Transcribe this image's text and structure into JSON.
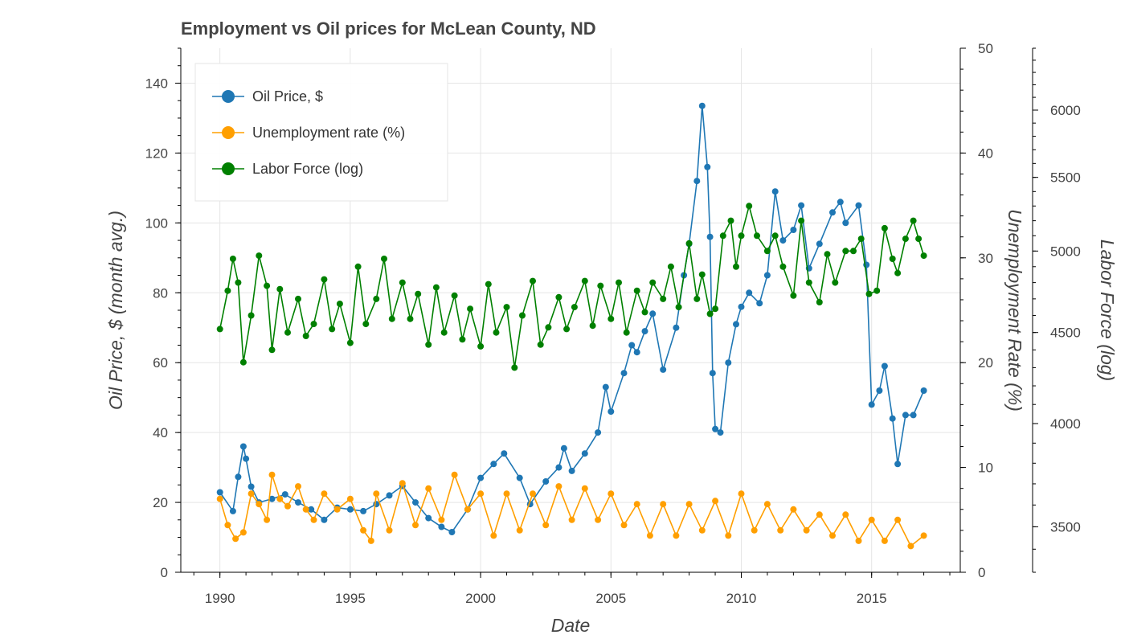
{
  "chart_data": {
    "type": "line",
    "title": "Employment vs Oil prices for McLean County, ND",
    "xlabel": "Date",
    "ylabel_left": "Oil Price, $ (month avg.)",
    "ylabel_right1": "Unemployment Rate (%)",
    "ylabel_right2": "Labor Force (log)",
    "xlim": [
      1988.5,
      2018.4
    ],
    "x_ticks": [
      "1990",
      "1995",
      "2000",
      "2005",
      "2010",
      "2015"
    ],
    "x_tick_values": [
      1990,
      1995,
      2000,
      2005,
      2010,
      2015
    ],
    "y_left": {
      "lim": [
        0,
        150
      ],
      "ticks": [
        "0",
        "20",
        "40",
        "60",
        "80",
        "100",
        "120",
        "140"
      ],
      "tick_values": [
        0,
        20,
        40,
        60,
        80,
        100,
        120,
        140
      ]
    },
    "y_right1": {
      "lim": [
        0,
        50
      ],
      "ticks": [
        "0",
        "10",
        "20",
        "30",
        "40",
        "50"
      ],
      "tick_values": [
        0,
        10,
        20,
        30,
        40,
        50
      ]
    },
    "y_right2": {
      "scale": "log",
      "lim": [
        3300,
        6500
      ],
      "ticks": [
        "3500",
        "4000",
        "4500",
        "5000",
        "5500",
        "6000"
      ],
      "tick_values": [
        3500,
        4000,
        4500,
        5000,
        5500,
        6000
      ]
    },
    "grid": true,
    "legend_position": "top-left",
    "legend": [
      "Oil Price, $",
      "Unemployment rate (%)",
      "Labor Force (log)"
    ],
    "series": [
      {
        "name": "Oil Price, $",
        "axis": "left",
        "color": "#1f77b4",
        "points": [
          [
            1990.0,
            22.9
          ],
          [
            1990.5,
            17.5
          ],
          [
            1990.7,
            27.3
          ],
          [
            1990.9,
            36.0
          ],
          [
            1991.0,
            32.5
          ],
          [
            1991.2,
            24.5
          ],
          [
            1991.5,
            20.0
          ],
          [
            1992.0,
            21.0
          ],
          [
            1992.5,
            22.3
          ],
          [
            1993.0,
            20.0
          ],
          [
            1993.5,
            18.0
          ],
          [
            1994.0,
            15.0
          ],
          [
            1994.5,
            18.5
          ],
          [
            1995.0,
            18.0
          ],
          [
            1995.5,
            17.5
          ],
          [
            1996.0,
            19.5
          ],
          [
            1996.5,
            22.0
          ],
          [
            1997.0,
            24.7
          ],
          [
            1997.5,
            20.0
          ],
          [
            1998.0,
            15.5
          ],
          [
            1998.5,
            13.0
          ],
          [
            1998.9,
            11.5
          ],
          [
            1999.5,
            18.0
          ],
          [
            2000.0,
            27.0
          ],
          [
            2000.5,
            31.0
          ],
          [
            2000.9,
            34.0
          ],
          [
            2001.5,
            27.0
          ],
          [
            2001.9,
            19.5
          ],
          [
            2002.5,
            26.0
          ],
          [
            2003.0,
            30.0
          ],
          [
            2003.2,
            35.5
          ],
          [
            2003.5,
            29.0
          ],
          [
            2004.0,
            34.0
          ],
          [
            2004.5,
            40.0
          ],
          [
            2004.8,
            53.0
          ],
          [
            2005.0,
            46.0
          ],
          [
            2005.5,
            57.0
          ],
          [
            2005.8,
            65.0
          ],
          [
            2006.0,
            63.0
          ],
          [
            2006.3,
            69.0
          ],
          [
            2006.6,
            74.0
          ],
          [
            2007.0,
            58.0
          ],
          [
            2007.5,
            70.0
          ],
          [
            2007.8,
            85.0
          ],
          [
            2008.0,
            94.0
          ],
          [
            2008.3,
            112.0
          ],
          [
            2008.5,
            133.5
          ],
          [
            2008.7,
            116.0
          ],
          [
            2008.8,
            96.0
          ],
          [
            2008.9,
            57.0
          ],
          [
            2009.0,
            41.0
          ],
          [
            2009.2,
            40.0
          ],
          [
            2009.5,
            60.0
          ],
          [
            2009.8,
            71.0
          ],
          [
            2010.0,
            76.0
          ],
          [
            2010.3,
            80.0
          ],
          [
            2010.7,
            77.0
          ],
          [
            2011.0,
            85.0
          ],
          [
            2011.3,
            109.0
          ],
          [
            2011.6,
            95.0
          ],
          [
            2012.0,
            98.0
          ],
          [
            2012.3,
            105.0
          ],
          [
            2012.6,
            87.0
          ],
          [
            2013.0,
            94.0
          ],
          [
            2013.5,
            103.0
          ],
          [
            2013.8,
            106.0
          ],
          [
            2014.0,
            100.0
          ],
          [
            2014.5,
            105.0
          ],
          [
            2014.8,
            88.0
          ],
          [
            2015.0,
            48.0
          ],
          [
            2015.3,
            52.0
          ],
          [
            2015.5,
            59.0
          ],
          [
            2015.8,
            44.0
          ],
          [
            2016.0,
            31.0
          ],
          [
            2016.3,
            45.0
          ],
          [
            2016.6,
            45.0
          ],
          [
            2017.0,
            52.0
          ]
        ]
      },
      {
        "name": "Unemployment rate (%)",
        "axis": "right1",
        "color": "#ff9f00",
        "points": [
          [
            1990.0,
            7.0
          ],
          [
            1990.3,
            4.5
          ],
          [
            1990.6,
            3.2
          ],
          [
            1990.9,
            3.8
          ],
          [
            1991.2,
            7.5
          ],
          [
            1991.5,
            6.5
          ],
          [
            1991.8,
            5.0
          ],
          [
            1992.0,
            9.3
          ],
          [
            1992.3,
            7.0
          ],
          [
            1992.6,
            6.3
          ],
          [
            1993.0,
            8.2
          ],
          [
            1993.3,
            6.0
          ],
          [
            1993.6,
            5.0
          ],
          [
            1994.0,
            7.5
          ],
          [
            1994.5,
            6.0
          ],
          [
            1995.0,
            7.0
          ],
          [
            1995.5,
            4.0
          ],
          [
            1995.8,
            3.0
          ],
          [
            1996.0,
            7.5
          ],
          [
            1996.5,
            4.0
          ],
          [
            1997.0,
            8.5
          ],
          [
            1997.5,
            4.5
          ],
          [
            1998.0,
            8.0
          ],
          [
            1998.5,
            5.0
          ],
          [
            1999.0,
            9.3
          ],
          [
            1999.5,
            6.0
          ],
          [
            2000.0,
            7.5
          ],
          [
            2000.5,
            3.5
          ],
          [
            2001.0,
            7.5
          ],
          [
            2001.5,
            4.0
          ],
          [
            2002.0,
            7.5
          ],
          [
            2002.5,
            4.5
          ],
          [
            2003.0,
            8.2
          ],
          [
            2003.5,
            5.0
          ],
          [
            2004.0,
            8.0
          ],
          [
            2004.5,
            5.0
          ],
          [
            2005.0,
            7.5
          ],
          [
            2005.5,
            4.5
          ],
          [
            2006.0,
            6.5
          ],
          [
            2006.5,
            3.5
          ],
          [
            2007.0,
            6.5
          ],
          [
            2007.5,
            3.5
          ],
          [
            2008.0,
            6.5
          ],
          [
            2008.5,
            4.0
          ],
          [
            2009.0,
            6.8
          ],
          [
            2009.5,
            3.5
          ],
          [
            2010.0,
            7.5
          ],
          [
            2010.5,
            4.0
          ],
          [
            2011.0,
            6.5
          ],
          [
            2011.5,
            4.0
          ],
          [
            2012.0,
            6.0
          ],
          [
            2012.5,
            4.0
          ],
          [
            2013.0,
            5.5
          ],
          [
            2013.5,
            3.5
          ],
          [
            2014.0,
            5.5
          ],
          [
            2014.5,
            3.0
          ],
          [
            2015.0,
            5.0
          ],
          [
            2015.5,
            3.0
          ],
          [
            2016.0,
            5.0
          ],
          [
            2016.5,
            2.5
          ],
          [
            2017.0,
            3.5
          ]
        ]
      },
      {
        "name": "Labor Force (log)",
        "axis": "right2",
        "color": "#008000",
        "points": [
          [
            1990.0,
            4520
          ],
          [
            1990.3,
            4750
          ],
          [
            1990.5,
            4950
          ],
          [
            1990.7,
            4800
          ],
          [
            1990.9,
            4330
          ],
          [
            1991.2,
            4600
          ],
          [
            1991.5,
            4970
          ],
          [
            1991.8,
            4780
          ],
          [
            1992.0,
            4400
          ],
          [
            1992.3,
            4760
          ],
          [
            1992.6,
            4500
          ],
          [
            1993.0,
            4700
          ],
          [
            1993.3,
            4480
          ],
          [
            1993.6,
            4550
          ],
          [
            1994.0,
            4820
          ],
          [
            1994.3,
            4520
          ],
          [
            1994.6,
            4670
          ],
          [
            1995.0,
            4440
          ],
          [
            1995.3,
            4900
          ],
          [
            1995.6,
            4550
          ],
          [
            1996.0,
            4700
          ],
          [
            1996.3,
            4950
          ],
          [
            1996.6,
            4580
          ],
          [
            1997.0,
            4800
          ],
          [
            1997.3,
            4580
          ],
          [
            1997.6,
            4730
          ],
          [
            1998.0,
            4430
          ],
          [
            1998.3,
            4770
          ],
          [
            1998.6,
            4500
          ],
          [
            1999.0,
            4720
          ],
          [
            1999.3,
            4460
          ],
          [
            1999.6,
            4640
          ],
          [
            2000.0,
            4420
          ],
          [
            2000.3,
            4790
          ],
          [
            2000.6,
            4500
          ],
          [
            2001.0,
            4650
          ],
          [
            2001.3,
            4300
          ],
          [
            2001.6,
            4600
          ],
          [
            2002.0,
            4810
          ],
          [
            2002.3,
            4430
          ],
          [
            2002.6,
            4530
          ],
          [
            2003.0,
            4710
          ],
          [
            2003.3,
            4520
          ],
          [
            2003.6,
            4650
          ],
          [
            2004.0,
            4810
          ],
          [
            2004.3,
            4540
          ],
          [
            2004.6,
            4780
          ],
          [
            2005.0,
            4580
          ],
          [
            2005.3,
            4800
          ],
          [
            2005.6,
            4500
          ],
          [
            2006.0,
            4750
          ],
          [
            2006.3,
            4620
          ],
          [
            2006.6,
            4800
          ],
          [
            2007.0,
            4700
          ],
          [
            2007.3,
            4900
          ],
          [
            2007.6,
            4650
          ],
          [
            2008.0,
            5050
          ],
          [
            2008.3,
            4700
          ],
          [
            2008.5,
            4850
          ],
          [
            2008.8,
            4610
          ],
          [
            2009.0,
            4640
          ],
          [
            2009.3,
            5100
          ],
          [
            2009.6,
            5200
          ],
          [
            2009.8,
            4900
          ],
          [
            2010.0,
            5100
          ],
          [
            2010.3,
            5300
          ],
          [
            2010.6,
            5100
          ],
          [
            2011.0,
            5000
          ],
          [
            2011.3,
            5100
          ],
          [
            2011.6,
            4900
          ],
          [
            2012.0,
            4720
          ],
          [
            2012.3,
            5200
          ],
          [
            2012.6,
            4800
          ],
          [
            2013.0,
            4680
          ],
          [
            2013.3,
            4980
          ],
          [
            2013.6,
            4800
          ],
          [
            2014.0,
            5000
          ],
          [
            2014.3,
            5000
          ],
          [
            2014.6,
            5080
          ],
          [
            2014.9,
            4730
          ],
          [
            2015.2,
            4750
          ],
          [
            2015.5,
            5150
          ],
          [
            2015.8,
            4950
          ],
          [
            2016.0,
            4860
          ],
          [
            2016.3,
            5080
          ],
          [
            2016.6,
            5200
          ],
          [
            2016.8,
            5080
          ],
          [
            2017.0,
            4970
          ]
        ]
      }
    ]
  }
}
